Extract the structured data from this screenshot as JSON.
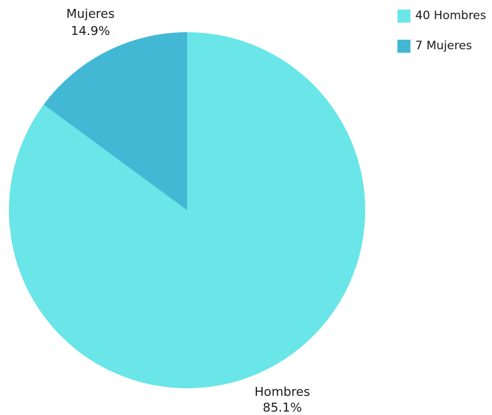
{
  "chart_data": {
    "type": "pie",
    "slices": [
      {
        "label": "Hombres",
        "value": 40,
        "percent_label": "85.1%",
        "legend": "40 Hombres",
        "color": "#6ae5e8"
      },
      {
        "label": "Mujeres",
        "value": 7,
        "percent_label": "14.9%",
        "legend": "7 Mujeres",
        "color": "#42b8d5"
      }
    ],
    "start_angle_deg": 0,
    "direction": "clockwise",
    "legend_position": "top-right"
  }
}
